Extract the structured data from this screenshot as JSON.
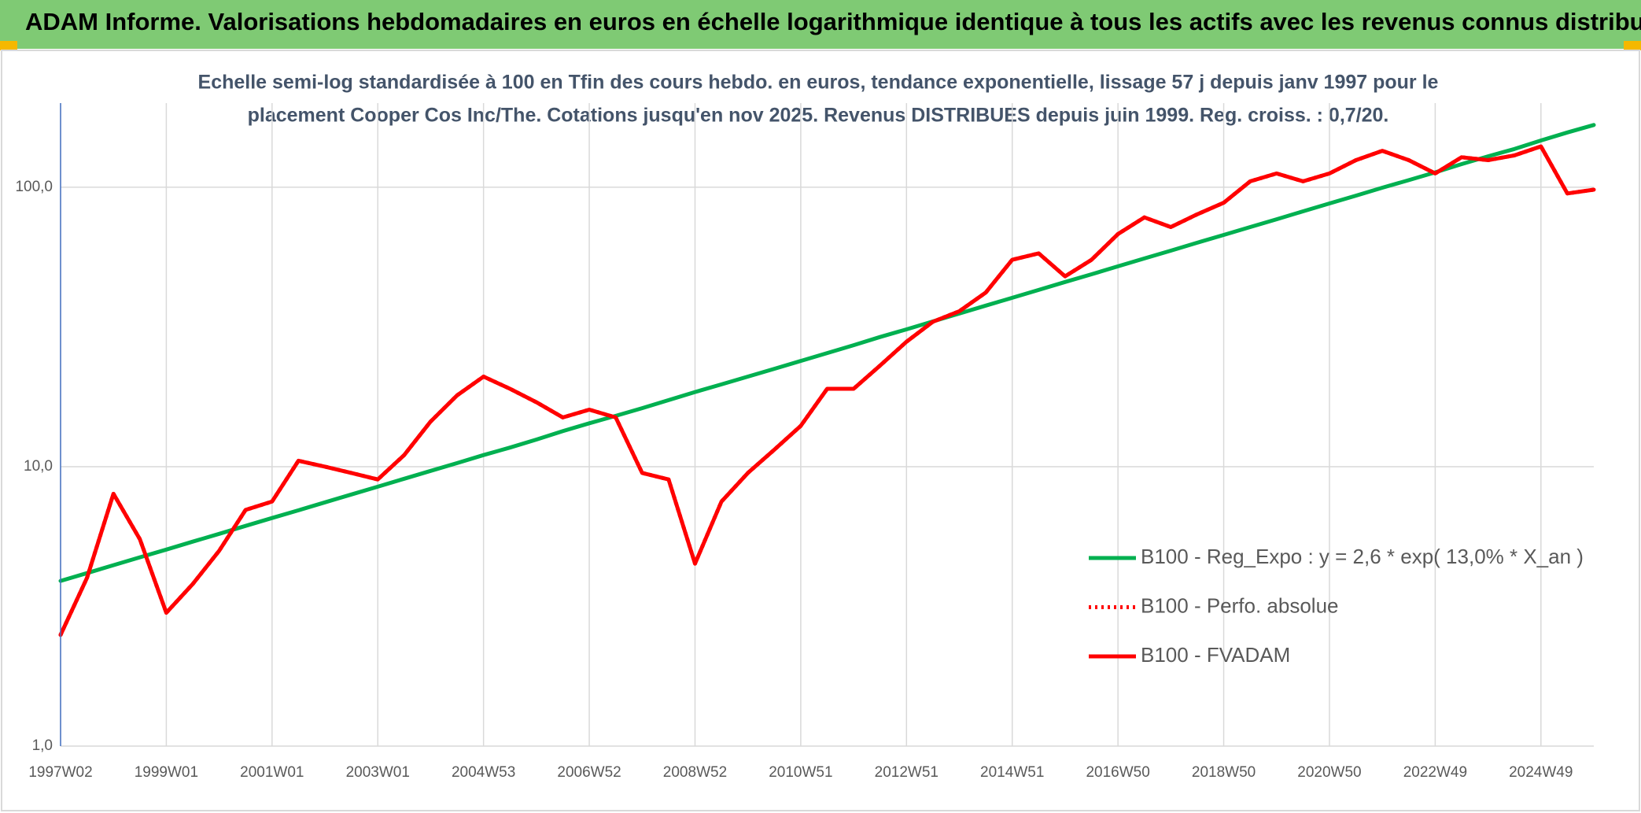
{
  "chart_data": {
    "type": "line",
    "title": "ADAM Informe. Valorisations hebdomadaires en euros en échelle logarithmique identique à tous les actifs avec les revenus connus distribués",
    "subtitle": [
      "Echelle semi-log standardisée à 100 en Tfin des cours hebdo. en euros, tendance exponentielle, lissage 57 j depuis janv 1997 pour le",
      "placement Cooper Cos Inc/The. Cotations jusqu'en nov 2025. Revenus DISTRIBUES depuis juin 1999. Reg. croiss. : 0,7/20."
    ],
    "categories": [
      "1997W02",
      null,
      null,
      null,
      "1999W01",
      null,
      null,
      null,
      "2001W01",
      null,
      null,
      null,
      "2003W01",
      null,
      null,
      null,
      "2004W53",
      null,
      null,
      null,
      "2006W52",
      null,
      null,
      null,
      "2008W52",
      null,
      null,
      null,
      "2010W51",
      null,
      null,
      null,
      "2012W51",
      null,
      null,
      null,
      "2014W51",
      null,
      null,
      null,
      "2016W50",
      null,
      null,
      null,
      "2018W50",
      null,
      null,
      null,
      "2020W50",
      null,
      null,
      null,
      "2022W49",
      null,
      null,
      null,
      "2024W49",
      null,
      null
    ],
    "series": [
      {
        "name": "B100 - Reg_Expo : y = 2,6 * exp( 13,0% *  X_an )",
        "color": "#00b050",
        "style": "solid",
        "values": [
          3.9,
          4.16,
          4.44,
          4.74,
          5.05,
          5.39,
          5.75,
          6.14,
          6.55,
          6.98,
          7.45,
          7.95,
          8.48,
          9.05,
          9.66,
          10.3,
          11.0,
          11.7,
          12.5,
          13.4,
          14.3,
          15.2,
          16.2,
          17.3,
          18.5,
          19.7,
          21.0,
          22.4,
          23.9,
          25.5,
          27.2,
          29.1,
          31.0,
          33.1,
          35.3,
          37.7,
          40.2,
          42.9,
          45.8,
          48.8,
          52.1,
          55.6,
          59.3,
          63.3,
          67.5,
          72.0,
          76.8,
          82.0,
          87.5,
          93.3,
          99.6,
          106,
          113,
          121,
          129,
          137,
          147,
          157,
          167
        ]
      },
      {
        "name": "B100 - Perfo. absolue",
        "color": "#ff0000",
        "style": "dotted",
        "values": [
          2.5,
          4.0,
          8.0,
          5.5,
          3.0,
          3.8,
          5.0,
          7.0,
          7.5,
          10.5,
          10.0,
          9.5,
          9.0,
          11,
          14.5,
          18,
          21,
          19,
          17,
          15,
          16,
          15,
          9.5,
          9,
          4.5,
          7.5,
          9.5,
          11.5,
          14,
          19,
          19,
          23,
          28,
          33,
          36,
          42,
          55,
          58,
          48,
          55,
          68,
          78,
          72,
          80,
          88,
          105,
          112,
          105,
          112,
          125,
          135,
          125,
          112,
          128,
          125,
          130,
          140,
          95,
          98
        ]
      },
      {
        "name": "B100 - FVADAM",
        "color": "#ff0000",
        "style": "solid",
        "values": [
          2.5,
          4.0,
          8.0,
          5.5,
          3.0,
          3.8,
          5.0,
          7.0,
          7.5,
          10.5,
          10.0,
          9.5,
          9.0,
          11,
          14.5,
          18,
          21,
          19,
          17,
          15,
          16,
          15,
          9.5,
          9,
          4.5,
          7.5,
          9.5,
          11.5,
          14,
          19,
          19,
          23,
          28,
          33,
          36,
          42,
          55,
          58,
          48,
          55,
          68,
          78,
          72,
          80,
          88,
          105,
          112,
          105,
          112,
          125,
          135,
          125,
          112,
          128,
          125,
          130,
          140,
          95,
          98
        ]
      }
    ],
    "ylim": [
      1,
      200
    ],
    "log_y": true,
    "yticks": [
      {
        "value": 1,
        "label": "1,0"
      },
      {
        "value": 10,
        "label": "10,0"
      },
      {
        "value": 100,
        "label": "100,0"
      }
    ],
    "grid": true
  }
}
